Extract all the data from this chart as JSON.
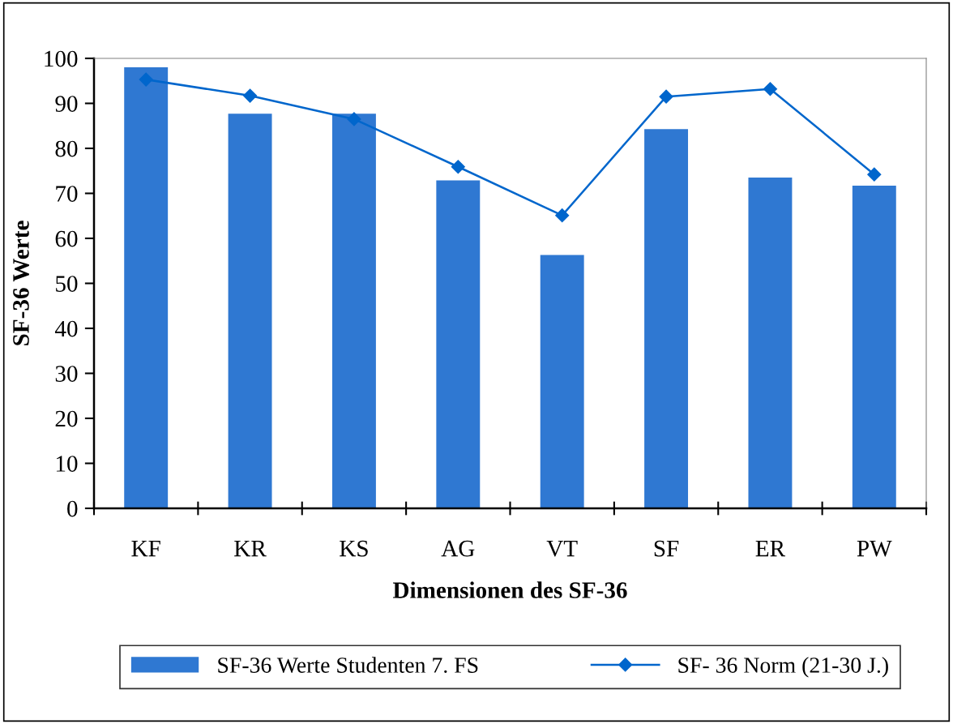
{
  "chart_data": {
    "type": "bar",
    "xlabel": "Dimensionen des SF-36",
    "ylabel": "SF-36 Werte",
    "categories": [
      "KF",
      "KR",
      "KS",
      "AG",
      "VT",
      "SF",
      "ER",
      "PW"
    ],
    "series": [
      {
        "name": "SF-36 Werte Studenten 7. FS",
        "color": "#2f78d2",
        "values": [
          98.0,
          87.7,
          87.7,
          72.9,
          56.3,
          84.3,
          73.5,
          71.7
        ]
      },
      {
        "name": "SF- 36 Norm (21-30 J.)",
        "type": "line",
        "color": "#0066cc",
        "values": [
          95.3,
          91.7,
          86.5,
          75.9,
          65.1,
          91.5,
          93.2,
          74.2
        ]
      }
    ],
    "ylim": [
      0,
      100
    ],
    "yticks": [
      0,
      10,
      20,
      30,
      40,
      50,
      60,
      70,
      80,
      90,
      100
    ],
    "marker": "diamond",
    "line_style": "solid",
    "grid": false,
    "legend": "bottom"
  }
}
